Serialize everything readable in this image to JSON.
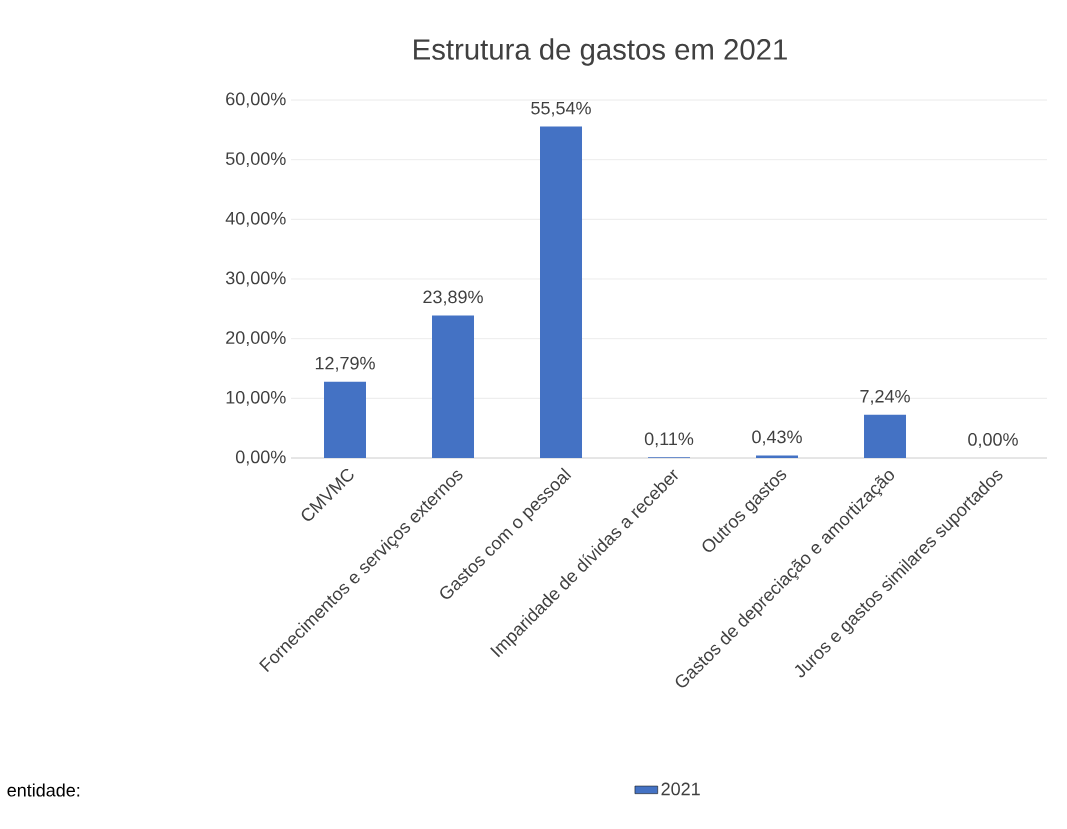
{
  "chart_data": {
    "type": "bar",
    "title": "Estrutura de gastos em 2021",
    "categories": [
      "CMVMC",
      "Fornecimentos e serviços externos",
      "Gastos com o pessoal",
      "Imparidade de dívidas a receber",
      "Outros gastos",
      "Gastos de depreciação e amortização",
      "Juros e gastos similares suportados"
    ],
    "series": [
      {
        "name": "2021",
        "color": "#4472c4",
        "values": [
          12.79,
          23.89,
          55.54,
          0.11,
          0.43,
          7.24,
          0.0
        ],
        "value_labels": [
          "12,79%",
          "23,89%",
          "55,54%",
          "0,11%",
          "0,43%",
          "7,24%",
          "0,00%"
        ]
      }
    ],
    "ylim": [
      0,
      60
    ],
    "yticks": [
      {
        "value": 0,
        "label": "0,00%"
      },
      {
        "value": 10,
        "label": "10,00%"
      },
      {
        "value": 20,
        "label": "20,00%"
      },
      {
        "value": 30,
        "label": "30,00%"
      },
      {
        "value": 40,
        "label": "40,00%"
      },
      {
        "value": 50,
        "label": "50,00%"
      },
      {
        "value": 60,
        "label": "60,00%"
      }
    ],
    "grid": "y",
    "legend": "bottom",
    "annotations": [
      "entidade:"
    ]
  }
}
